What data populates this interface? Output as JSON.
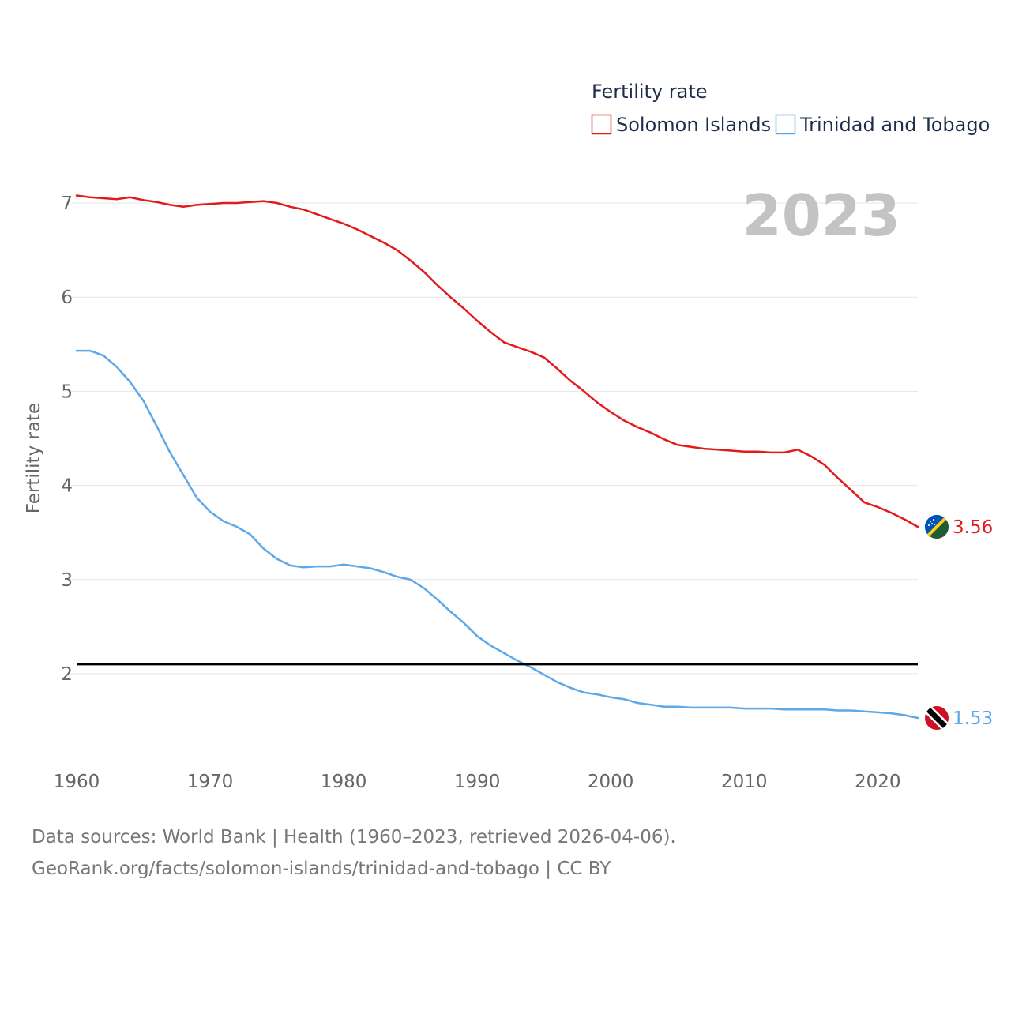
{
  "chart_data": {
    "type": "line",
    "legend_title": "Fertility rate",
    "year_label": "2023",
    "ylabel": "Fertility rate",
    "xlabel": "",
    "x_range": [
      1960,
      2023
    ],
    "ylim": [
      1.0,
      7.5
    ],
    "x_ticks": [
      1960,
      1970,
      1980,
      1990,
      2000,
      2010,
      2020
    ],
    "y_ticks": [
      2,
      3,
      4,
      5,
      6,
      7
    ],
    "reference_line": 2.1,
    "legend_position": "top-right",
    "series": [
      {
        "name": "Solomon Islands",
        "color": "#e31a1c",
        "end_label": "3.56",
        "flag": "solomon-islands-flag",
        "x": [
          1960,
          1961,
          1962,
          1963,
          1964,
          1965,
          1966,
          1967,
          1968,
          1969,
          1970,
          1971,
          1972,
          1973,
          1974,
          1975,
          1976,
          1977,
          1978,
          1979,
          1980,
          1981,
          1982,
          1983,
          1984,
          1985,
          1986,
          1987,
          1988,
          1989,
          1990,
          1991,
          1992,
          1993,
          1994,
          1995,
          1996,
          1997,
          1998,
          1999,
          2000,
          2001,
          2002,
          2003,
          2004,
          2005,
          2006,
          2007,
          2008,
          2009,
          2010,
          2011,
          2012,
          2013,
          2014,
          2015,
          2016,
          2017,
          2018,
          2019,
          2020,
          2021,
          2022,
          2023
        ],
        "values": [
          7.08,
          7.06,
          7.05,
          7.04,
          7.06,
          7.03,
          7.01,
          6.98,
          6.96,
          6.98,
          6.99,
          7.0,
          7.0,
          7.01,
          7.02,
          7.0,
          6.96,
          6.93,
          6.88,
          6.83,
          6.78,
          6.72,
          6.65,
          6.58,
          6.5,
          6.39,
          6.27,
          6.13,
          6.0,
          5.88,
          5.75,
          5.63,
          5.52,
          5.47,
          5.42,
          5.36,
          5.24,
          5.11,
          5.0,
          4.88,
          4.78,
          4.69,
          4.62,
          4.56,
          4.49,
          4.43,
          4.41,
          4.39,
          4.38,
          4.37,
          4.36,
          4.36,
          4.35,
          4.35,
          4.38,
          4.31,
          4.22,
          4.08,
          3.95,
          3.82,
          3.77,
          3.71,
          3.64,
          3.56
        ]
      },
      {
        "name": "Trinidad and Tobago",
        "color": "#5da8e8",
        "end_label": "1.53",
        "flag": "trinidad-and-tobago-flag",
        "x": [
          1960,
          1961,
          1962,
          1963,
          1964,
          1965,
          1966,
          1967,
          1968,
          1969,
          1970,
          1971,
          1972,
          1973,
          1974,
          1975,
          1976,
          1977,
          1978,
          1979,
          1980,
          1981,
          1982,
          1983,
          1984,
          1985,
          1986,
          1987,
          1988,
          1989,
          1990,
          1991,
          1992,
          1993,
          1994,
          1995,
          1996,
          1997,
          1998,
          1999,
          2000,
          2001,
          2002,
          2003,
          2004,
          2005,
          2006,
          2007,
          2008,
          2009,
          2010,
          2011,
          2012,
          2013,
          2014,
          2015,
          2016,
          2017,
          2018,
          2019,
          2020,
          2021,
          2022,
          2023
        ],
        "values": [
          5.43,
          5.43,
          5.38,
          5.26,
          5.1,
          4.9,
          4.63,
          4.35,
          4.11,
          3.87,
          3.72,
          3.62,
          3.56,
          3.48,
          3.33,
          3.22,
          3.15,
          3.13,
          3.14,
          3.14,
          3.16,
          3.14,
          3.12,
          3.08,
          3.03,
          3.0,
          2.91,
          2.79,
          2.66,
          2.54,
          2.4,
          2.3,
          2.22,
          2.14,
          2.07,
          1.99,
          1.91,
          1.85,
          1.8,
          1.78,
          1.75,
          1.73,
          1.69,
          1.67,
          1.65,
          1.65,
          1.64,
          1.64,
          1.64,
          1.64,
          1.63,
          1.63,
          1.63,
          1.62,
          1.62,
          1.62,
          1.62,
          1.61,
          1.61,
          1.6,
          1.59,
          1.58,
          1.56,
          1.53
        ]
      }
    ]
  },
  "footer": {
    "line1": "Data sources: World Bank | Health (1960–2023, retrieved 2026-04-06).",
    "line2": "GeoRank.org/facts/solomon-islands/trinidad-and-tobago | CC BY"
  }
}
